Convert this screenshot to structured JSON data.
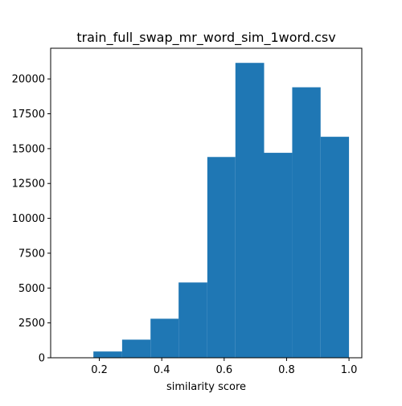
{
  "chart_data": {
    "type": "bar",
    "title": "train_full_swap_mr_word_sim_1word.csv",
    "xlabel": "similarity score",
    "ylabel": "",
    "xlim": [
      0.044,
      1.041
    ],
    "ylim": [
      0,
      22200
    ],
    "bar_color": "#1f77b4",
    "bins": [
      {
        "x0": 0.181,
        "x1": 0.273,
        "count": 450
      },
      {
        "x0": 0.273,
        "x1": 0.364,
        "count": 1300
      },
      {
        "x0": 0.364,
        "x1": 0.454,
        "count": 2800
      },
      {
        "x0": 0.454,
        "x1": 0.546,
        "count": 5400
      },
      {
        "x0": 0.546,
        "x1": 0.636,
        "count": 14400
      },
      {
        "x0": 0.636,
        "x1": 0.728,
        "count": 21150
      },
      {
        "x0": 0.728,
        "x1": 0.818,
        "count": 14700
      },
      {
        "x0": 0.818,
        "x1": 0.909,
        "count": 19400
      },
      {
        "x0": 0.909,
        "x1": 1.0,
        "count": 15850
      }
    ],
    "x_ticks": [
      {
        "value": 0.2,
        "label": "0.2"
      },
      {
        "value": 0.4,
        "label": "0.4"
      },
      {
        "value": 0.6,
        "label": "0.6"
      },
      {
        "value": 0.8,
        "label": "0.8"
      },
      {
        "value": 1.0,
        "label": "1.0"
      }
    ],
    "y_ticks": [
      {
        "value": 0,
        "label": "0"
      },
      {
        "value": 2500,
        "label": "2500"
      },
      {
        "value": 5000,
        "label": "5000"
      },
      {
        "value": 7500,
        "label": "7500"
      },
      {
        "value": 10000,
        "label": "10000"
      },
      {
        "value": 12500,
        "label": "12500"
      },
      {
        "value": 15000,
        "label": "15000"
      },
      {
        "value": 17500,
        "label": "17500"
      },
      {
        "value": 20000,
        "label": "20000"
      }
    ],
    "grid": false,
    "legend": false
  }
}
